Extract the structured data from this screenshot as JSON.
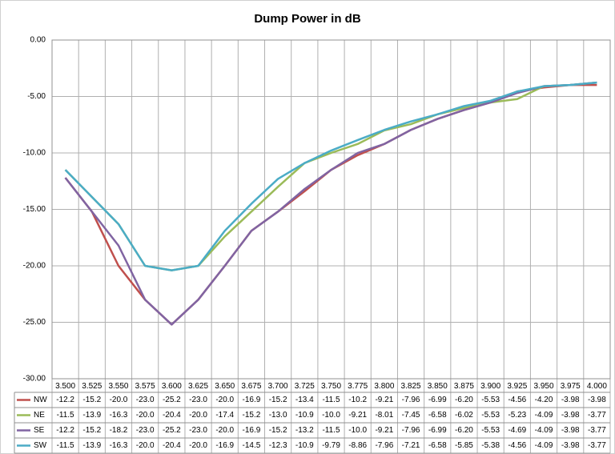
{
  "chart_data": {
    "type": "line",
    "title": "Dump Power in dB",
    "categories": [
      "3.500",
      "3.525",
      "3.550",
      "3.575",
      "3.600",
      "3.625",
      "3.650",
      "3.675",
      "3.700",
      "3.725",
      "3.750",
      "3.775",
      "3.800",
      "3.825",
      "3.850",
      "3.875",
      "3.900",
      "3.925",
      "3.950",
      "3.975",
      "4.000"
    ],
    "series": [
      {
        "name": "NW",
        "color": "#c0504d",
        "values": [
          -12.2,
          -15.2,
          -20.0,
          -23.0,
          -25.2,
          -23.0,
          -20.0,
          -16.9,
          -15.2,
          -13.4,
          -11.5,
          -10.2,
          -9.21,
          -7.96,
          -6.99,
          -6.2,
          -5.53,
          -4.56,
          -4.2,
          -3.98,
          -3.98
        ],
        "value_labels": [
          "-12.2",
          "-15.2",
          "-20.0",
          "-23.0",
          "-25.2",
          "-23.0",
          "-20.0",
          "-16.9",
          "-15.2",
          "-13.4",
          "-11.5",
          "-10.2",
          "-9.21",
          "-7.96",
          "-6.99",
          "-6.20",
          "-5.53",
          "-4.56",
          "-4.20",
          "-3.98",
          "-3.98"
        ]
      },
      {
        "name": "NE",
        "color": "#9bbb59",
        "values": [
          -11.5,
          -13.9,
          -16.3,
          -20.0,
          -20.4,
          -20.0,
          -17.4,
          -15.2,
          -13.0,
          -10.9,
          -10.0,
          -9.21,
          -8.01,
          -7.45,
          -6.58,
          -6.02,
          -5.53,
          -5.23,
          -4.09,
          -3.98,
          -3.77
        ],
        "value_labels": [
          "-11.5",
          "-13.9",
          "-16.3",
          "-20.0",
          "-20.4",
          "-20.0",
          "-17.4",
          "-15.2",
          "-13.0",
          "-10.9",
          "-10.0",
          "-9.21",
          "-8.01",
          "-7.45",
          "-6.58",
          "-6.02",
          "-5.53",
          "-5.23",
          "-4.09",
          "-3.98",
          "-3.77"
        ]
      },
      {
        "name": "SE",
        "color": "#8064a2",
        "values": [
          -12.2,
          -15.2,
          -18.2,
          -23.0,
          -25.2,
          -23.0,
          -20.0,
          -16.9,
          -15.2,
          -13.2,
          -11.5,
          -10.0,
          -9.21,
          -7.96,
          -6.99,
          -6.2,
          -5.53,
          -4.69,
          -4.09,
          -3.98,
          -3.77
        ],
        "value_labels": [
          "-12.2",
          "-15.2",
          "-18.2",
          "-23.0",
          "-25.2",
          "-23.0",
          "-20.0",
          "-16.9",
          "-15.2",
          "-13.2",
          "-11.5",
          "-10.0",
          "-9.21",
          "-7.96",
          "-6.99",
          "-6.20",
          "-5.53",
          "-4.69",
          "-4.09",
          "-3.98",
          "-3.77"
        ]
      },
      {
        "name": "SW",
        "color": "#4bacc6",
        "values": [
          -11.5,
          -13.9,
          -16.3,
          -20.0,
          -20.4,
          -20.0,
          -16.9,
          -14.5,
          -12.3,
          -10.9,
          -9.79,
          -8.86,
          -7.96,
          -7.21,
          -6.58,
          -5.85,
          -5.38,
          -4.56,
          -4.09,
          -3.98,
          -3.77
        ],
        "value_labels": [
          "-11.5",
          "-13.9",
          "-16.3",
          "-20.0",
          "-20.4",
          "-20.0",
          "-16.9",
          "-14.5",
          "-12.3",
          "-10.9",
          "-9.79",
          "-8.86",
          "-7.96",
          "-7.21",
          "-6.58",
          "-5.85",
          "-5.38",
          "-4.56",
          "-4.09",
          "-3.98",
          "-3.77"
        ]
      }
    ],
    "ylim": [
      -30,
      0
    ],
    "yticks": [
      {
        "value": 0,
        "label": "0.00"
      },
      {
        "value": -5,
        "label": "-5.00"
      },
      {
        "value": -10,
        "label": "-10.00"
      },
      {
        "value": -15,
        "label": "-15.00"
      },
      {
        "value": -20,
        "label": "-20.00"
      },
      {
        "value": -25,
        "label": "-25.00"
      },
      {
        "value": -30,
        "label": "-30.00"
      }
    ],
    "grid": true
  }
}
